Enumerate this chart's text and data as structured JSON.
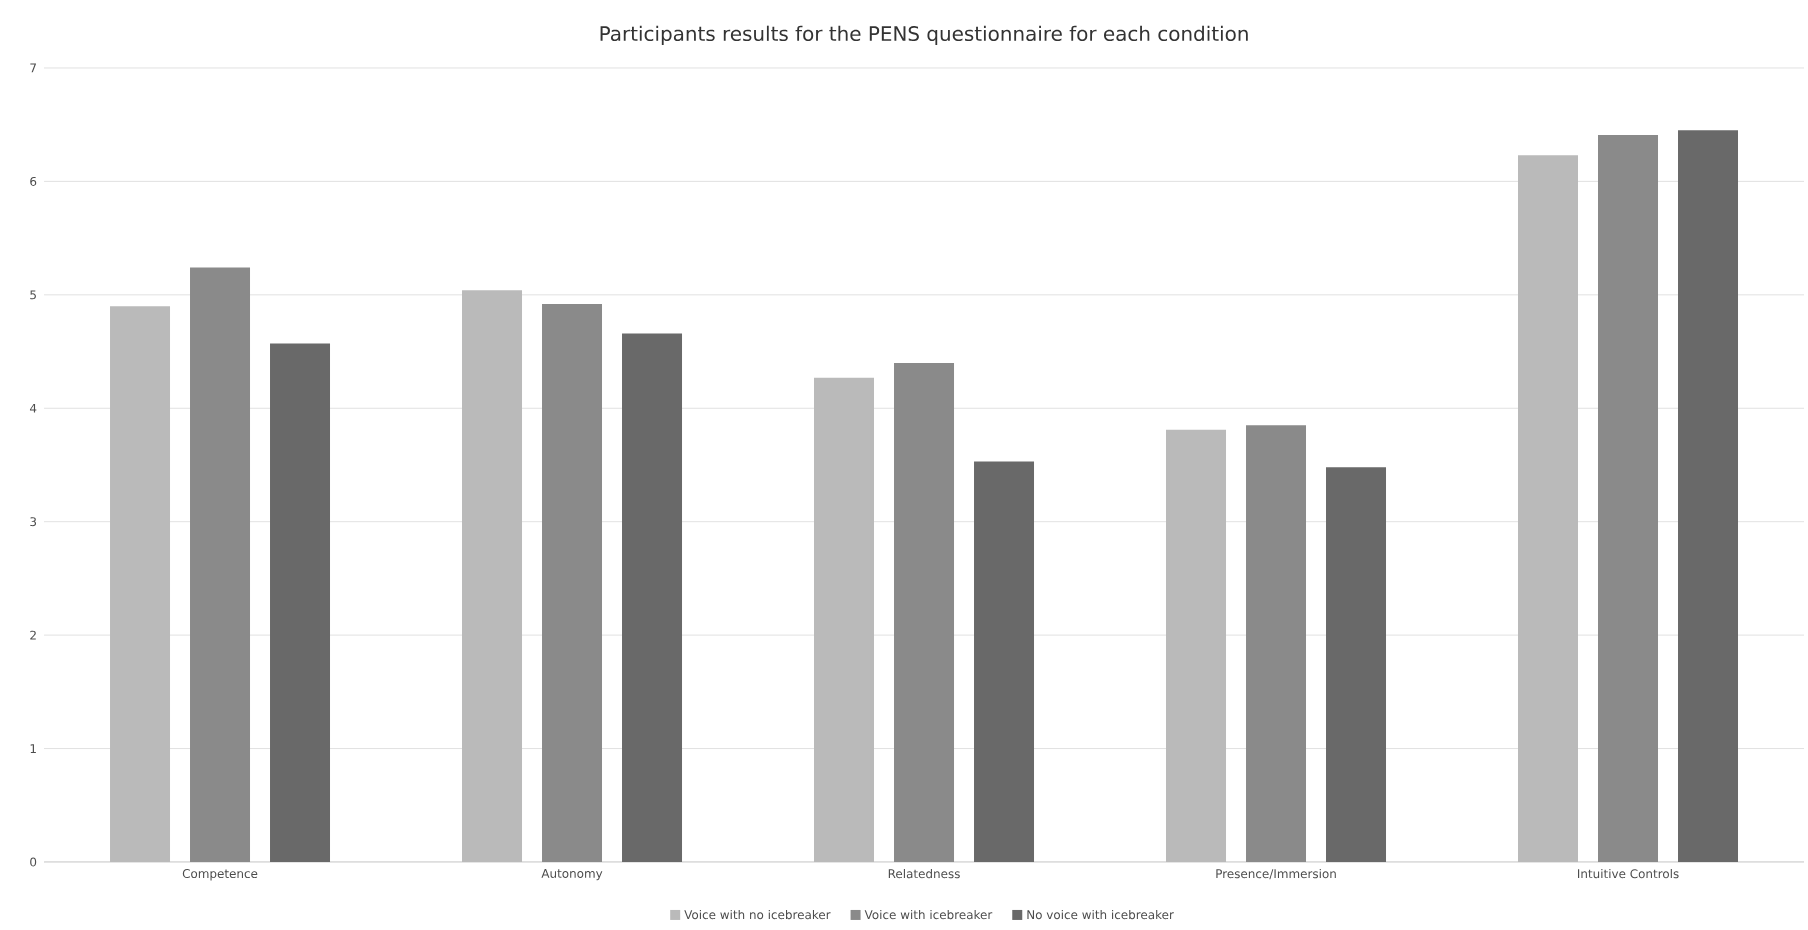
{
  "chart_data": {
    "type": "bar",
    "title": "Participants results for the PENS questionnaire for each condition",
    "categories": [
      "Competence",
      "Autonomy",
      "Relatedness",
      "Presence/Immersion",
      "Intuitive Controls"
    ],
    "series": [
      {
        "name": "Voice with no icebreaker",
        "color": "#bababa",
        "values": [
          4.9,
          5.04,
          4.27,
          3.81,
          6.23
        ]
      },
      {
        "name": "Voice with icebreaker",
        "color": "#8a8a8a",
        "values": [
          5.24,
          4.92,
          4.4,
          3.85,
          6.41
        ]
      },
      {
        "name": "No voice with icebreaker",
        "color": "#696969",
        "values": [
          4.57,
          4.66,
          3.53,
          3.48,
          6.45
        ]
      }
    ],
    "ylim": [
      0,
      7
    ],
    "yticks": [
      0,
      1,
      2,
      3,
      4,
      5,
      6,
      7
    ],
    "grid": "y",
    "legend": "bottom"
  }
}
